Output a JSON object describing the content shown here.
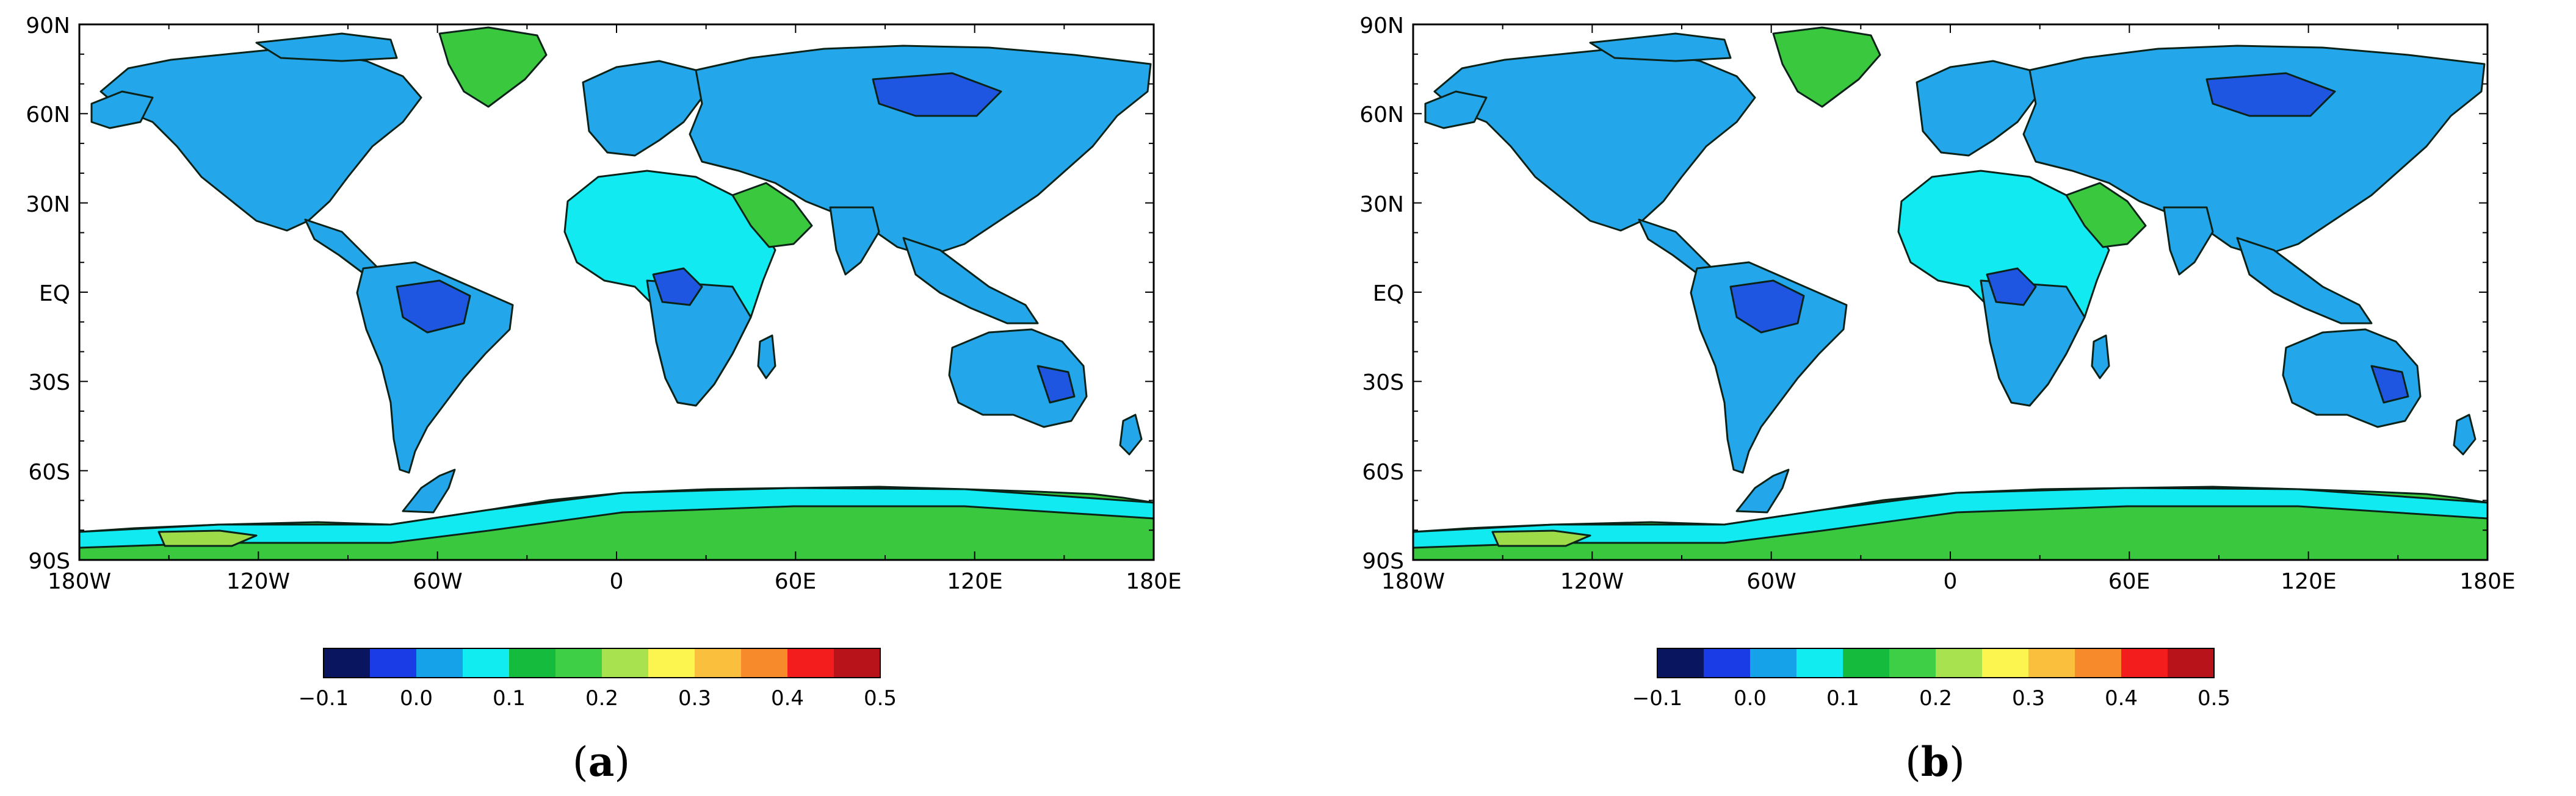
{
  "panels": [
    {
      "label_open": "(",
      "label_letter": "a",
      "label_close": ")",
      "y_ticks": [
        "90N",
        "60N",
        "30N",
        "EQ",
        "30S",
        "60S",
        "90S"
      ],
      "x_ticks": [
        "180W",
        "120W",
        "60W",
        "0",
        "60E",
        "120E",
        "180E"
      ],
      "colorbar_ticks": [
        "−0.1",
        "0.0",
        "0.1",
        "0.2",
        "0.3",
        "0.4",
        "0.5"
      ]
    },
    {
      "label_open": "(",
      "label_letter": "b",
      "label_close": ")",
      "y_ticks": [
        "90N",
        "60N",
        "30N",
        "EQ",
        "30S",
        "60S",
        "90S"
      ],
      "x_ticks": [
        "180W",
        "120W",
        "60W",
        "0",
        "60E",
        "120E",
        "180E"
      ],
      "colorbar_ticks": [
        "−0.1",
        "0.0",
        "0.1",
        "0.2",
        "0.3",
        "0.4",
        "0.5"
      ]
    }
  ],
  "colorbar": {
    "min": -0.1,
    "max": 0.5,
    "colors": [
      "#0a1560",
      "#1a3ce6",
      "#16a2e8",
      "#11ecf0",
      "#15bb3d",
      "#3fcf46",
      "#a9e24f",
      "#fcf54f",
      "#fbbf3e",
      "#f78a2a",
      "#f41d1d",
      "#b8121a"
    ]
  },
  "palette": {
    "land_main": "#24a6ea",
    "land_low": "#1e56e2",
    "land_cyan": "#10eaf0",
    "land_green": "#3ac83e",
    "land_yellowgreen": "#9edb49",
    "coast": "#0b2218"
  }
}
